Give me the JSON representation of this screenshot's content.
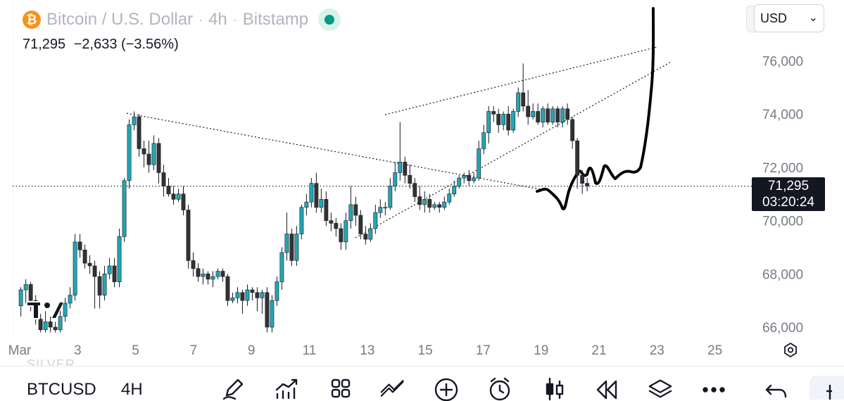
{
  "header": {
    "symbol_title": "Bitcoin / U.S. Dollar",
    "interval": "4h",
    "exchange": "Bitstamp",
    "separator": "·",
    "coin_glyph": "₿",
    "last": "71,295",
    "change": "−2,633",
    "change_pct": "(−3.56%)"
  },
  "currency": {
    "selected": "USD",
    "chevron": "⌄"
  },
  "price_tag": {
    "price": "71,295",
    "countdown": "03:20:24"
  },
  "colors": {
    "up": "#22a6b3",
    "down": "#333333",
    "last_price_line": "#131722",
    "status_dot": "#089981",
    "brand_coin": "#f7931a"
  },
  "chart_data": {
    "type": "candlestick",
    "y_axis": {
      "ticks": [
        66000,
        68000,
        70000,
        72000,
        74000,
        76000
      ],
      "tick_labels": [
        "66,000",
        "68,000",
        "70,000",
        "72,000",
        "74,000",
        "76,000"
      ],
      "range": [
        64900,
        77900
      ]
    },
    "x_axis": {
      "tick_labels": [
        "Mar",
        "3",
        "5",
        "7",
        "9",
        "11",
        "13",
        "15",
        "17",
        "19",
        "21",
        "23",
        "25"
      ],
      "tick_days": [
        1,
        3,
        5,
        7,
        9,
        11,
        13,
        15,
        17,
        19,
        21,
        23,
        25
      ],
      "range_days": [
        1,
        26
      ]
    },
    "last_price": 71295,
    "candles": [
      [
        1.04,
        66800,
        67400,
        66400,
        67500
      ],
      [
        1.21,
        67400,
        67600,
        66900,
        67800
      ],
      [
        1.38,
        67600,
        67000,
        66600,
        67700
      ],
      [
        1.55,
        67000,
        66300,
        66100,
        67200
      ],
      [
        1.72,
        66300,
        65900,
        65800,
        66500
      ],
      [
        1.89,
        65900,
        66200,
        65800,
        66600
      ],
      [
        2.06,
        66200,
        66000,
        65800,
        66400
      ],
      [
        2.23,
        66000,
        65900,
        65800,
        66200
      ],
      [
        2.4,
        65900,
        66400,
        65800,
        66700
      ],
      [
        2.57,
        66400,
        66900,
        66200,
        67100
      ],
      [
        2.74,
        66900,
        67200,
        66700,
        67500
      ],
      [
        2.91,
        67200,
        69200,
        67000,
        69500
      ],
      [
        3.08,
        69200,
        68900,
        68600,
        69500
      ],
      [
        3.25,
        68900,
        68400,
        68200,
        69100
      ],
      [
        3.42,
        68400,
        68300,
        68000,
        68700
      ],
      [
        3.59,
        68300,
        67900,
        66700,
        68500
      ],
      [
        3.76,
        67900,
        67200,
        66700,
        68100
      ],
      [
        3.93,
        67200,
        68000,
        67000,
        68300
      ],
      [
        4.1,
        68000,
        68300,
        67800,
        68600
      ],
      [
        4.27,
        68300,
        67700,
        67500,
        68600
      ],
      [
        4.44,
        67700,
        69400,
        67500,
        69700
      ],
      [
        4.61,
        69400,
        71500,
        69200,
        71600
      ],
      [
        4.78,
        71500,
        73600,
        71200,
        73800
      ],
      [
        4.95,
        73600,
        73900,
        73400,
        74100
      ],
      [
        5.12,
        73900,
        72700,
        72400,
        74000
      ],
      [
        5.29,
        72700,
        72500,
        72000,
        73000
      ],
      [
        5.46,
        72500,
        72100,
        71800,
        73000
      ],
      [
        5.63,
        72100,
        72900,
        71900,
        73200
      ],
      [
        5.8,
        72900,
        71800,
        71400,
        73100
      ],
      [
        5.97,
        71800,
        71300,
        70900,
        72100
      ],
      [
        6.14,
        71300,
        71000,
        70900,
        71600
      ],
      [
        6.31,
        71000,
        70800,
        70600,
        71300
      ],
      [
        6.48,
        70800,
        71000,
        70700,
        71200
      ],
      [
        6.65,
        71000,
        70400,
        70200,
        71300
      ],
      [
        6.82,
        70400,
        68500,
        68200,
        70600
      ],
      [
        6.99,
        68500,
        68200,
        67900,
        68800
      ],
      [
        7.16,
        68200,
        67900,
        67700,
        68400
      ],
      [
        7.33,
        67900,
        68000,
        67600,
        68200
      ],
      [
        7.5,
        68000,
        67800,
        67600,
        68100
      ],
      [
        7.67,
        67800,
        67900,
        67500,
        68100
      ],
      [
        7.84,
        67900,
        68100,
        67800,
        68200
      ],
      [
        8.01,
        68100,
        67900,
        67700,
        68200
      ],
      [
        8.18,
        67900,
        67000,
        66800,
        68000
      ],
      [
        8.35,
        67000,
        67100,
        66900,
        67300
      ],
      [
        8.52,
        67100,
        67300,
        66900,
        67500
      ],
      [
        8.69,
        67300,
        67000,
        66500,
        67400
      ],
      [
        8.86,
        67000,
        67400,
        66800,
        67600
      ],
      [
        9.03,
        67400,
        67300,
        67000,
        67500
      ],
      [
        9.2,
        67300,
        67100,
        66600,
        67500
      ],
      [
        9.37,
        67100,
        67300,
        66500,
        67400
      ],
      [
        9.54,
        67300,
        66000,
        65800,
        67500
      ],
      [
        9.71,
        66000,
        67000,
        65800,
        67200
      ],
      [
        9.88,
        67000,
        67700,
        66800,
        67900
      ],
      [
        10.05,
        67700,
        68800,
        67400,
        69000
      ],
      [
        10.22,
        68800,
        69500,
        68500,
        70300
      ],
      [
        10.39,
        69500,
        68500,
        68300,
        69700
      ],
      [
        10.56,
        68500,
        69500,
        68300,
        69800
      ],
      [
        10.73,
        69500,
        70500,
        69300,
        70600
      ],
      [
        10.9,
        70500,
        70700,
        70200,
        71000
      ],
      [
        11.07,
        70700,
        71400,
        70500,
        71600
      ],
      [
        11.24,
        71400,
        70500,
        70300,
        71800
      ],
      [
        11.41,
        70500,
        70800,
        70300,
        71200
      ],
      [
        11.58,
        70800,
        70000,
        69800,
        71100
      ],
      [
        11.75,
        70000,
        69900,
        69600,
        70300
      ],
      [
        11.92,
        69900,
        69700,
        69400,
        70100
      ],
      [
        12.09,
        69700,
        69200,
        68900,
        69900
      ],
      [
        12.26,
        69200,
        70000,
        68900,
        70300
      ],
      [
        12.43,
        70000,
        70600,
        69700,
        71300
      ],
      [
        12.6,
        70600,
        70200,
        69800,
        70900
      ],
      [
        12.77,
        70200,
        69500,
        69300,
        70400
      ],
      [
        12.94,
        69500,
        69300,
        69100,
        69800
      ],
      [
        13.11,
        69300,
        69700,
        69200,
        69900
      ],
      [
        13.28,
        69700,
        70300,
        69500,
        70600
      ],
      [
        13.45,
        70300,
        70500,
        70100,
        70800
      ],
      [
        13.62,
        70500,
        70500,
        70200,
        70700
      ],
      [
        13.79,
        70500,
        71300,
        70400,
        71600
      ],
      [
        13.96,
        71300,
        71800,
        71100,
        72200
      ],
      [
        14.13,
        71800,
        72200,
        71500,
        73700
      ],
      [
        14.3,
        72200,
        71700,
        71400,
        72400
      ],
      [
        14.47,
        71700,
        71400,
        71200,
        72100
      ],
      [
        14.64,
        71400,
        70900,
        70700,
        71600
      ],
      [
        14.81,
        70900,
        70600,
        70400,
        71300
      ],
      [
        14.98,
        70600,
        70800,
        70300,
        71100
      ],
      [
        15.15,
        70800,
        70500,
        70300,
        71000
      ],
      [
        15.32,
        70500,
        70600,
        70400,
        70700
      ],
      [
        15.49,
        70600,
        70500,
        70300,
        70700
      ],
      [
        15.66,
        70500,
        70700,
        70400,
        70900
      ],
      [
        15.83,
        70700,
        71000,
        70600,
        71200
      ],
      [
        16.0,
        71000,
        71300,
        70900,
        71500
      ],
      [
        16.17,
        71300,
        71600,
        71200,
        71700
      ],
      [
        16.34,
        71600,
        71700,
        71400,
        71800
      ],
      [
        16.51,
        71700,
        71500,
        71300,
        71900
      ],
      [
        16.68,
        71500,
        71600,
        71400,
        71800
      ],
      [
        16.85,
        71600,
        72700,
        71500,
        73000
      ],
      [
        17.02,
        72700,
        73300,
        72500,
        73600
      ],
      [
        17.19,
        73300,
        74100,
        72900,
        74300
      ],
      [
        17.36,
        74100,
        74000,
        73700,
        74300
      ],
      [
        17.53,
        74000,
        73600,
        73300,
        74200
      ],
      [
        17.7,
        73600,
        74000,
        73400,
        74100
      ],
      [
        17.87,
        74000,
        73400,
        73200,
        74300
      ],
      [
        18.04,
        73400,
        74100,
        73300,
        74200
      ],
      [
        18.21,
        74100,
        74800,
        73900,
        75000
      ],
      [
        18.38,
        74800,
        74300,
        74100,
        75900
      ],
      [
        18.55,
        74300,
        73900,
        73600,
        74900
      ],
      [
        18.72,
        73900,
        74100,
        73800,
        74400
      ],
      [
        18.89,
        74100,
        73700,
        73600,
        74400
      ],
      [
        19.06,
        73700,
        74200,
        73500,
        74300
      ],
      [
        19.23,
        74200,
        73700,
        73600,
        74400
      ],
      [
        19.4,
        73700,
        74200,
        73600,
        74300
      ],
      [
        19.57,
        74200,
        73700,
        73500,
        74300
      ],
      [
        19.74,
        73700,
        74200,
        73500,
        74300
      ],
      [
        19.91,
        74200,
        73800,
        73600,
        74400
      ],
      [
        20.08,
        73800,
        73000,
        72700,
        73900
      ],
      [
        20.25,
        73000,
        71700,
        71200,
        73100
      ],
      [
        20.42,
        71700,
        71400,
        71000,
        71900
      ],
      [
        20.59,
        71400,
        71300,
        71100,
        71600
      ]
    ]
  },
  "toolbar": {
    "symbol": "BTCUSD",
    "timeframe": "4H",
    "watermark": "SILVER",
    "icons": [
      "pencil-icon",
      "indicators-icon",
      "layout-grid-icon",
      "compare-icon",
      "add-icon",
      "alert-clock-icon",
      "candle-type-icon",
      "replay-icon",
      "layers-icon",
      "more-icon",
      "undo-icon"
    ]
  }
}
